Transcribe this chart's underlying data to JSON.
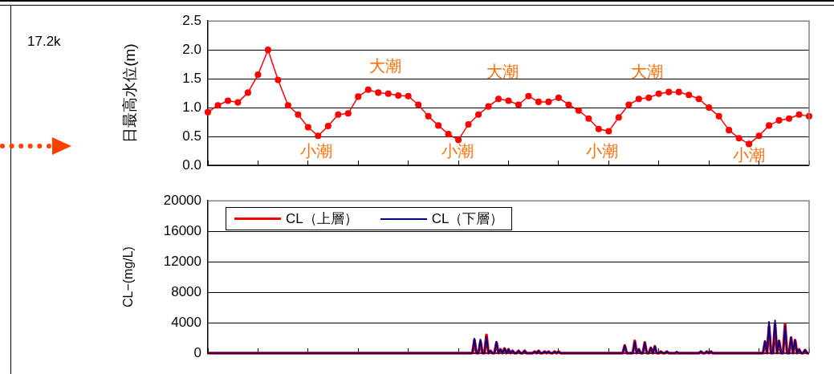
{
  "chart_data": [
    {
      "type": "line",
      "ylabel": "日最高水位(m)",
      "categories": [
        null,
        null,
        null,
        null,
        null,
        null,
        null,
        null,
        null,
        null,
        null,
        null,
        null,
        null,
        null,
        null,
        null,
        null,
        null,
        null,
        null,
        null,
        null,
        null,
        null,
        null,
        null,
        null,
        null,
        null,
        null,
        null,
        null,
        null,
        null,
        null,
        null,
        null,
        null,
        null,
        null,
        null,
        null,
        null,
        null,
        null,
        null,
        null,
        null,
        null,
        null,
        null,
        null,
        null,
        null,
        null,
        null,
        null,
        null,
        null,
        null
      ],
      "series": [
        {
          "color": "#ff0000",
          "values": [
            0.92,
            1.04,
            1.12,
            1.09,
            1.26,
            1.57,
            2.0,
            1.48,
            1.04,
            0.88,
            0.66,
            0.51,
            0.68,
            0.88,
            0.9,
            1.19,
            1.31,
            1.26,
            1.24,
            1.21,
            1.2,
            1.05,
            0.85,
            0.69,
            0.54,
            0.44,
            0.71,
            0.88,
            1.02,
            1.15,
            1.12,
            1.05,
            1.2,
            1.1,
            1.1,
            1.17,
            1.05,
            0.95,
            0.81,
            0.63,
            0.59,
            0.83,
            1.05,
            1.15,
            1.17,
            1.24,
            1.27,
            1.27,
            1.22,
            1.15,
            1.0,
            0.85,
            0.61,
            0.47,
            0.37,
            0.51,
            0.69,
            0.78,
            0.81,
            0.88,
            0.85
          ]
        }
      ],
      "ylim": [
        0,
        2.5
      ],
      "yticks": [
        {
          "value": 0,
          "label": "0.0"
        },
        {
          "value": 0.5,
          "label": "0.5"
        },
        {
          "value": 1,
          "label": "1.0"
        },
        {
          "value": 1.5,
          "label": "1.5"
        },
        {
          "value": 2,
          "label": "2.0"
        },
        {
          "value": 2.5,
          "label": "2.5"
        }
      ],
      "grid": "y",
      "marker": "circle",
      "annotations": [
        "17.2k",
        "大潮",
        "大潮",
        "大潮",
        "小潮",
        "小潮",
        "小潮",
        "小潮"
      ]
    },
    {
      "type": "line",
      "ylabel": "CL−(mg/L)",
      "legend": "top left",
      "grid": "y",
      "categories": [
        null,
        null,
        null,
        null,
        null,
        null,
        null,
        null,
        null,
        null,
        null,
        null,
        null,
        null,
        null,
        null,
        null,
        null,
        null,
        null,
        null,
        null,
        null,
        null,
        null,
        null,
        null,
        null,
        null,
        null,
        null,
        null,
        null,
        null,
        null,
        null,
        null,
        null,
        null,
        null,
        null,
        null,
        null,
        null,
        null,
        null,
        null,
        null,
        null,
        null,
        null,
        null,
        null,
        null,
        null,
        null,
        null,
        null,
        null,
        null,
        null,
        null,
        null,
        null,
        null,
        null,
        null,
        null,
        null,
        null,
        null,
        null,
        null,
        null,
        null,
        null,
        null,
        null,
        null,
        null,
        null,
        null,
        null,
        null,
        null,
        null,
        null,
        null,
        null,
        null,
        null,
        null,
        null,
        null,
        null,
        null,
        null,
        null,
        null,
        null,
        null,
        null,
        null,
        null,
        null,
        null,
        null,
        null,
        null,
        null,
        null,
        null,
        null,
        null,
        null,
        null,
        null,
        null,
        null,
        null,
        null,
        null,
        null,
        null,
        null,
        null,
        null,
        null,
        null,
        null,
        null,
        null,
        null,
        null,
        null,
        null,
        null,
        null,
        null,
        null,
        null,
        null,
        null,
        null,
        null,
        null,
        null,
        null,
        null,
        null,
        null,
        null,
        null,
        null,
        null,
        null,
        null,
        null,
        null,
        null,
        null,
        null,
        null,
        null,
        null,
        null,
        null,
        null,
        null,
        null,
        null,
        null,
        null,
        null,
        null,
        null,
        null,
        null,
        null,
        null,
        null,
        null,
        null,
        null,
        null,
        null,
        null,
        null,
        null,
        null,
        null,
        null,
        null,
        null,
        null,
        null,
        null,
        null,
        null,
        null,
        null,
        null,
        null,
        null,
        null,
        null,
        null,
        null,
        null,
        null,
        null,
        null,
        null,
        null,
        null,
        null,
        null,
        null,
        null,
        null,
        null,
        null,
        null,
        null,
        null,
        null,
        null,
        null,
        null,
        null,
        null,
        null,
        null,
        null,
        null,
        null,
        null,
        null,
        null,
        null,
        null,
        null,
        null,
        null,
        null,
        null,
        null,
        null,
        null,
        null,
        null,
        null,
        null,
        null,
        null,
        null,
        null,
        null,
        null,
        null,
        null,
        null,
        null,
        null,
        null,
        null,
        null,
        null,
        null,
        null,
        null,
        null,
        null,
        null,
        null,
        null,
        null,
        null,
        null,
        null,
        null,
        null,
        null,
        null,
        null,
        null,
        null,
        null,
        null,
        null,
        null,
        null,
        null,
        null,
        null,
        null,
        null,
        null,
        null,
        null,
        null
      ],
      "series": [
        {
          "name": "CL（上層）",
          "color": "#ff0000",
          "values": [
            0,
            0,
            0,
            0,
            0,
            0,
            0,
            0,
            0,
            0,
            0,
            0,
            0,
            0,
            0,
            0,
            0,
            0,
            0,
            0,
            0,
            0,
            0,
            0,
            0,
            0,
            0,
            0,
            0,
            0,
            0,
            0,
            0,
            0,
            0,
            0,
            0,
            0,
            0,
            0,
            0,
            0,
            0,
            0,
            0,
            0,
            0,
            0,
            0,
            0,
            0,
            0,
            0,
            0,
            0,
            0,
            0,
            0,
            0,
            0,
            0,
            0,
            0,
            0,
            0,
            0,
            0,
            0,
            0,
            0,
            0,
            0,
            0,
            0,
            0,
            0,
            0,
            0,
            0,
            0,
            0,
            0,
            0,
            0,
            0,
            0,
            0,
            0,
            0,
            0,
            0,
            0,
            0,
            0,
            0,
            0,
            0,
            0,
            0,
            0,
            0,
            0,
            0,
            0,
            0,
            0,
            0,
            0,
            0,
            0,
            0,
            0,
            0,
            0,
            0,
            0,
            0,
            0,
            0,
            0,
            0,
            0,
            0,
            0,
            0,
            0,
            0,
            0,
            0,
            0,
            0,
            0,
            0,
            1700,
            0,
            0,
            1500,
            0,
            0,
            2400,
            0,
            300,
            0,
            0,
            1400,
            0,
            500,
            0,
            600,
            0,
            500,
            0,
            300,
            0,
            0,
            300,
            0,
            0,
            300,
            0,
            0,
            0,
            0,
            200,
            0,
            300,
            0,
            0,
            200,
            0,
            200,
            0,
            0,
            200,
            0,
            200,
            0,
            0,
            0,
            0,
            0,
            0,
            0,
            0,
            0,
            0,
            0,
            0,
            0,
            0,
            0,
            0,
            0,
            0,
            0,
            0,
            0,
            0,
            0,
            0,
            0,
            0,
            0,
            0,
            0,
            0,
            0,
            0,
            1000,
            0,
            0,
            0,
            0,
            1600,
            0,
            500,
            0,
            0,
            1400,
            0,
            0,
            700,
            0,
            900,
            0,
            0,
            200,
            0,
            0,
            200,
            0,
            0,
            0,
            0,
            0,
            0,
            0,
            0,
            0,
            0,
            0,
            0,
            0,
            0,
            0,
            0,
            200,
            0,
            0,
            200,
            0,
            200,
            0,
            0,
            0,
            0,
            0,
            0,
            0,
            0,
            0,
            0,
            0,
            0,
            0,
            0,
            0,
            0,
            0,
            0,
            0,
            0,
            0,
            0,
            0,
            0,
            0,
            0,
            1500,
            0,
            3500,
            0,
            0,
            3800,
            0,
            1600,
            0,
            0,
            3800,
            0,
            0,
            2000,
            0,
            1700,
            0,
            500,
            0,
            0,
            400,
            0,
            0
          ]
        },
        {
          "name": "CL（下層）",
          "color": "#000080",
          "values": [
            0,
            0,
            0,
            0,
            0,
            0,
            0,
            0,
            0,
            0,
            0,
            0,
            0,
            0,
            0,
            0,
            0,
            0,
            0,
            0,
            0,
            0,
            0,
            0,
            0,
            0,
            0,
            0,
            0,
            0,
            0,
            0,
            0,
            0,
            0,
            0,
            0,
            0,
            0,
            0,
            0,
            0,
            0,
            0,
            0,
            0,
            0,
            0,
            0,
            0,
            0,
            0,
            0,
            0,
            0,
            0,
            0,
            0,
            0,
            0,
            0,
            0,
            0,
            0,
            0,
            0,
            0,
            0,
            0,
            0,
            0,
            0,
            0,
            0,
            0,
            0,
            0,
            0,
            0,
            0,
            0,
            0,
            0,
            0,
            0,
            0,
            0,
            0,
            0,
            0,
            0,
            0,
            0,
            0,
            0,
            0,
            0,
            0,
            0,
            0,
            0,
            0,
            0,
            0,
            0,
            0,
            0,
            0,
            0,
            0,
            0,
            0,
            0,
            0,
            0,
            0,
            0,
            0,
            0,
            0,
            0,
            0,
            0,
            0,
            0,
            0,
            0,
            0,
            0,
            0,
            0,
            0,
            0,
            1900,
            0,
            0,
            1800,
            0,
            0,
            2200,
            0,
            300,
            0,
            0,
            1500,
            0,
            500,
            0,
            600,
            0,
            500,
            0,
            300,
            0,
            0,
            300,
            0,
            0,
            300,
            0,
            0,
            0,
            0,
            200,
            0,
            300,
            0,
            0,
            200,
            0,
            200,
            0,
            0,
            200,
            0,
            200,
            0,
            0,
            0,
            0,
            0,
            0,
            0,
            0,
            0,
            0,
            0,
            0,
            0,
            0,
            0,
            0,
            0,
            0,
            0,
            0,
            0,
            0,
            0,
            0,
            0,
            0,
            0,
            0,
            0,
            0,
            0,
            0,
            1000,
            0,
            0,
            0,
            0,
            1500,
            0,
            500,
            0,
            0,
            1400,
            0,
            0,
            700,
            0,
            900,
            0,
            0,
            200,
            0,
            0,
            200,
            0,
            0,
            0,
            0,
            200,
            0,
            0,
            0,
            0,
            0,
            0,
            0,
            0,
            0,
            0,
            0,
            200,
            0,
            0,
            200,
            0,
            200,
            0,
            0,
            0,
            0,
            0,
            0,
            0,
            0,
            0,
            0,
            0,
            0,
            0,
            0,
            0,
            0,
            0,
            0,
            0,
            0,
            0,
            0,
            0,
            0,
            0,
            0,
            1600,
            0,
            4100,
            0,
            0,
            4300,
            0,
            1600,
            0,
            0,
            3600,
            0,
            0,
            2100,
            0,
            1700,
            0,
            500,
            0,
            0,
            400,
            0,
            0
          ]
        }
      ],
      "ylim": [
        0,
        20000
      ],
      "yticks": [
        0,
        4000,
        8000,
        12000,
        16000,
        20000
      ]
    }
  ]
}
